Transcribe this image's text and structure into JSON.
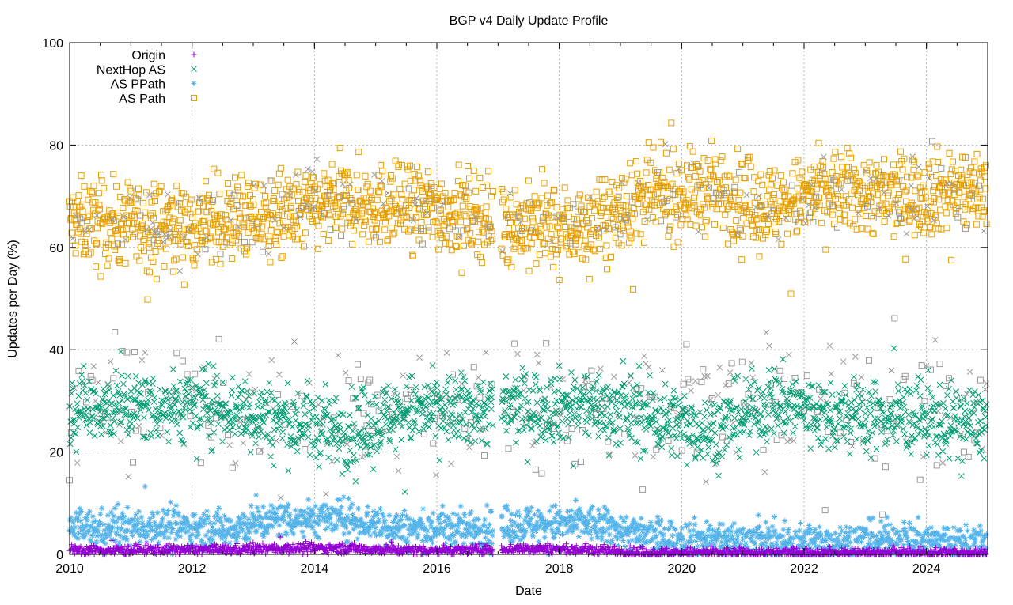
{
  "chart_data": {
    "type": "scatter",
    "title": "BGP v4 Daily Update Profile",
    "xlabel": "Date",
    "ylabel": "Updates per Day (%)",
    "xlim": [
      2010,
      2025
    ],
    "ylim": [
      0,
      100
    ],
    "xticks": [
      "2010",
      "2012",
      "2014",
      "2016",
      "2018",
      "2020",
      "2022",
      "2024"
    ],
    "yticks": [
      "0",
      "20",
      "40",
      "60",
      "80",
      "100"
    ],
    "grid": true,
    "legend_position": "top-left",
    "data_gap": [
      "2016-12",
      "2017-01"
    ],
    "x": [
      2010,
      2011,
      2012,
      2013,
      2014,
      2015,
      2016,
      2017,
      2018,
      2019,
      2020,
      2021,
      2022,
      2023,
      2024
    ],
    "series": [
      {
        "name": "AS Path",
        "color": "#e69f00",
        "marker": "square",
        "values": [
          65,
          64,
          65,
          66,
          69,
          68,
          67,
          64,
          64,
          70,
          71,
          68,
          71,
          70,
          71
        ],
        "spread": 4
      },
      {
        "name": "",
        "color": "#999999",
        "marker": "mixed",
        "values": [
          30,
          30,
          30,
          29,
          27,
          28,
          29,
          30,
          29,
          28,
          27,
          30,
          29,
          28,
          28
        ],
        "spread": 6
      },
      {
        "name": "NextHop AS",
        "color": "#009e73",
        "marker": "x",
        "values": [
          29,
          29,
          29,
          26,
          24,
          28,
          28,
          29,
          29,
          27,
          24,
          30,
          27,
          27,
          26
        ],
        "spread": 3.5
      },
      {
        "name": "AS PPath",
        "color": "#56b4e9",
        "marker": "star",
        "values": [
          5,
          5.5,
          5,
          7,
          7,
          5,
          5,
          6,
          6,
          3.5,
          3,
          2.5,
          2.5,
          3,
          2.5
        ],
        "spread": 1.8
      },
      {
        "name": "Origin",
        "color": "#9400d3",
        "marker": "plus",
        "values": [
          0.8,
          0.9,
          0.9,
          1.2,
          1.2,
          0.8,
          0.8,
          1.2,
          0.8,
          0.3,
          0.3,
          0.3,
          0.3,
          0.3,
          0.3
        ],
        "spread": 0.5
      }
    ],
    "legend": [
      "Origin",
      "NextHop AS",
      "AS PPath",
      "AS Path"
    ]
  }
}
